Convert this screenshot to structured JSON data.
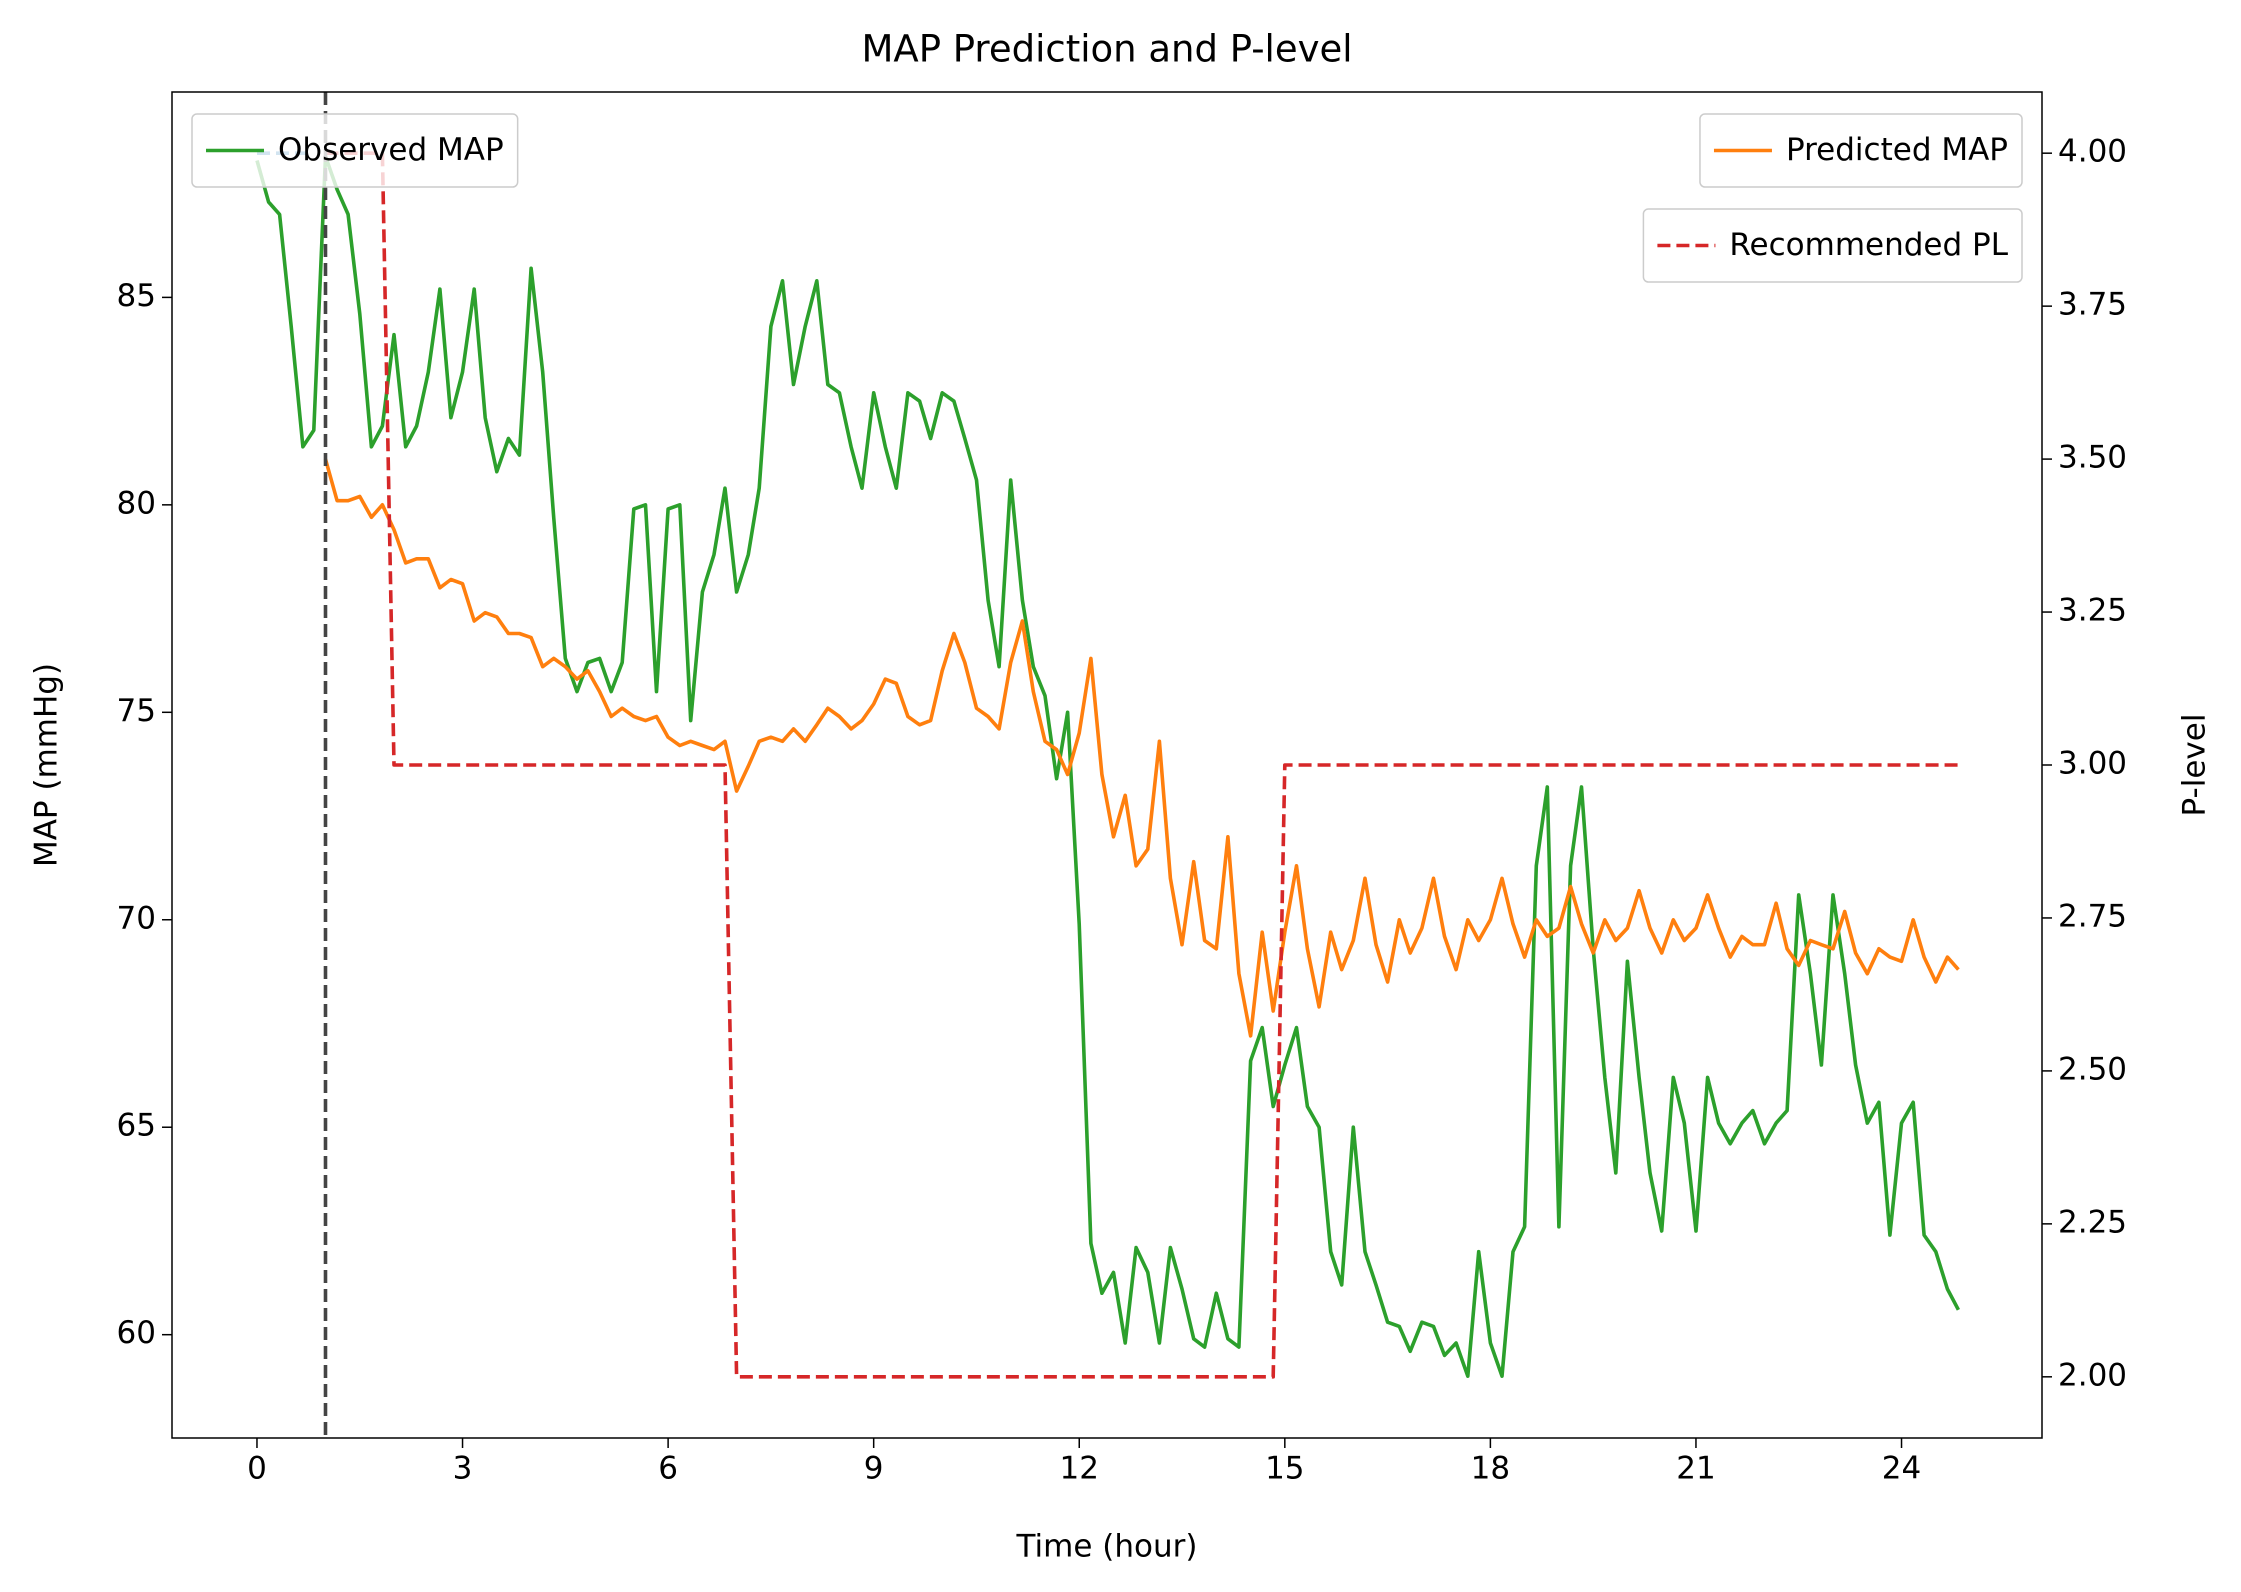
{
  "chart_data": {
    "type": "line",
    "title": "MAP Prediction and P-level",
    "xlabel": "Time (hour)",
    "ylabel": "MAP (mmHg)",
    "y2label": "P-level",
    "xlim": [
      -1.24,
      26.05
    ],
    "ylim": [
      57.51,
      89.95
    ],
    "y2lim": [
      1.9,
      4.1
    ],
    "xticks": [
      0,
      3,
      6,
      9,
      12,
      15,
      18,
      21,
      24
    ],
    "yticks": [
      60,
      65,
      70,
      75,
      80,
      85
    ],
    "y2ticks": [
      {
        "value": 2,
        "label": "2.00"
      },
      2.25,
      {
        "value": 2.5,
        "label": "2.50"
      },
      2.75,
      {
        "value": 3,
        "label": "3.00"
      },
      3.25,
      {
        "value": 3.5,
        "label": "3.50"
      },
      3.75,
      {
        "value": 4,
        "label": "4.00"
      }
    ],
    "vline": 1,
    "vline_color": "#444444",
    "series": [
      {
        "name": "Observed MAP",
        "color": "#2ca02c",
        "linestyle": "solid",
        "legend": "upper left",
        "x": [
          0,
          0.17,
          0.33,
          0.5,
          0.67,
          0.83,
          1,
          1.17,
          1.33,
          1.5,
          1.67,
          1.83,
          2,
          2.17,
          2.33,
          2.5,
          2.67,
          2.83,
          3,
          3.17,
          3.33,
          3.5,
          3.67,
          3.83,
          4,
          4.17,
          4.33,
          4.5,
          4.67,
          4.83,
          5,
          5.17,
          5.33,
          5.5,
          5.67,
          5.83,
          6,
          6.17,
          6.33,
          6.5,
          6.67,
          6.83,
          7,
          7.17,
          7.33,
          7.5,
          7.67,
          7.83,
          8,
          8.17,
          8.33,
          8.5,
          8.67,
          8.83,
          9,
          9.17,
          9.33,
          9.5,
          9.67,
          9.83,
          10,
          10.17,
          10.33,
          10.5,
          10.67,
          10.83,
          11,
          11.17,
          11.33,
          11.5,
          11.67,
          11.83,
          12,
          12.17,
          12.33,
          12.5,
          12.67,
          12.83,
          13,
          13.17,
          13.33,
          13.5,
          13.67,
          13.83,
          14,
          14.17,
          14.33,
          14.5,
          14.67,
          14.83,
          15,
          15.17,
          15.33,
          15.5,
          15.67,
          15.83,
          16,
          16.17,
          16.33,
          16.5,
          16.67,
          16.83,
          17,
          17.17,
          17.33,
          17.5,
          17.67,
          17.83,
          18,
          18.17,
          18.33,
          18.5,
          18.67,
          18.83,
          19,
          19.17,
          19.33,
          19.5,
          19.67,
          19.83,
          20,
          20.17,
          20.33,
          20.5,
          20.67,
          20.83,
          21,
          21.17,
          21.33,
          21.5,
          21.67,
          21.83,
          22,
          22.17,
          22.33,
          22.5,
          22.67,
          22.83,
          23,
          23.17,
          23.33,
          23.5,
          23.67,
          23.83,
          24,
          24.17,
          24.33,
          24.5,
          24.67,
          24.83
        ],
        "values": [
          88.3,
          87.3,
          87.0,
          84.3,
          81.4,
          81.8,
          88.4,
          87.6,
          87.0,
          84.6,
          81.4,
          81.9,
          84.1,
          81.4,
          81.9,
          83.2,
          85.2,
          82.1,
          83.2,
          85.2,
          82.1,
          80.8,
          81.6,
          81.2,
          85.7,
          83.2,
          79.7,
          76.3,
          75.5,
          76.2,
          76.3,
          75.5,
          76.2,
          79.9,
          80.0,
          75.5,
          79.9,
          80.0,
          74.8,
          77.9,
          78.8,
          80.4,
          77.9,
          78.8,
          80.4,
          84.3,
          85.4,
          82.9,
          84.3,
          85.4,
          82.9,
          82.7,
          81.4,
          80.4,
          82.7,
          81.4,
          80.4,
          82.7,
          82.5,
          81.6,
          82.7,
          82.5,
          81.6,
          80.6,
          77.7,
          76.1,
          80.6,
          77.7,
          76.1,
          75.4,
          73.4,
          75.0,
          69.9,
          62.2,
          61.0,
          61.5,
          59.8,
          62.1,
          61.5,
          59.8,
          62.1,
          61.1,
          59.9,
          59.7,
          61.0,
          59.9,
          59.7,
          66.6,
          67.4,
          65.5,
          66.5,
          67.4,
          65.5,
          65.0,
          62.0,
          61.2,
          65.0,
          62.0,
          61.2,
          60.3,
          60.2,
          59.6,
          60.3,
          60.2,
          59.5,
          59.8,
          59.0,
          62.0,
          59.8,
          59.0,
          62.0,
          62.6,
          71.3,
          73.2,
          62.6,
          71.3,
          73.2,
          69.3,
          66.2,
          63.9,
          69.0,
          66.2,
          63.9,
          62.5,
          66.2,
          65.1,
          62.5,
          66.2,
          65.1,
          64.6,
          65.1,
          65.4,
          64.6,
          65.1,
          65.4,
          70.6,
          68.7,
          66.5,
          70.6,
          68.7,
          66.5,
          65.1,
          65.6,
          62.4,
          65.1,
          65.6,
          62.4,
          62.0,
          61.1,
          60.6
        ]
      },
      {
        "name": "Predicted MAP",
        "color": "#ff7f0e",
        "linestyle": "solid",
        "legend": "upper right",
        "x": [
          1,
          1.17,
          1.33,
          1.5,
          1.67,
          1.83,
          2,
          2.17,
          2.33,
          2.5,
          2.67,
          2.83,
          3,
          3.17,
          3.33,
          3.5,
          3.67,
          3.83,
          4,
          4.17,
          4.33,
          4.5,
          4.67,
          4.83,
          5,
          5.17,
          5.33,
          5.5,
          5.67,
          5.83,
          6,
          6.17,
          6.33,
          6.5,
          6.67,
          6.83,
          7,
          7.17,
          7.33,
          7.5,
          7.67,
          7.83,
          8,
          8.17,
          8.33,
          8.5,
          8.67,
          8.83,
          9,
          9.17,
          9.33,
          9.5,
          9.67,
          9.83,
          10,
          10.17,
          10.33,
          10.5,
          10.67,
          10.83,
          11,
          11.17,
          11.33,
          11.5,
          11.67,
          11.83,
          12,
          12.17,
          12.33,
          12.5,
          12.67,
          12.83,
          13,
          13.17,
          13.33,
          13.5,
          13.67,
          13.83,
          14,
          14.17,
          14.33,
          14.5,
          14.67,
          14.83,
          15,
          15.17,
          15.33,
          15.5,
          15.67,
          15.83,
          16,
          16.17,
          16.33,
          16.5,
          16.67,
          16.83,
          17,
          17.17,
          17.33,
          17.5,
          17.67,
          17.83,
          18,
          18.17,
          18.33,
          18.5,
          18.67,
          18.83,
          19,
          19.17,
          19.33,
          19.5,
          19.67,
          19.83,
          20,
          20.17,
          20.33,
          20.5,
          20.67,
          20.83,
          21,
          21.17,
          21.33,
          21.5,
          21.67,
          21.83,
          22,
          22.17,
          22.33,
          22.5,
          22.67,
          22.83,
          23,
          23.17,
          23.33,
          23.5,
          23.67,
          23.83,
          24,
          24.17,
          24.33,
          24.5,
          24.67,
          24.83
        ],
        "values": [
          81.1,
          80.1,
          80.1,
          80.2,
          79.7,
          80.0,
          79.4,
          78.6,
          78.7,
          78.7,
          78.0,
          78.2,
          78.1,
          77.2,
          77.4,
          77.3,
          76.9,
          76.9,
          76.8,
          76.1,
          76.3,
          76.1,
          75.8,
          76.0,
          75.5,
          74.9,
          75.1,
          74.9,
          74.8,
          74.9,
          74.4,
          74.2,
          74.3,
          74.2,
          74.1,
          74.3,
          73.1,
          73.7,
          74.3,
          74.4,
          74.3,
          74.6,
          74.3,
          74.7,
          75.1,
          74.9,
          74.6,
          74.8,
          75.2,
          75.8,
          75.7,
          74.9,
          74.7,
          74.8,
          76.0,
          76.9,
          76.2,
          75.1,
          74.9,
          74.6,
          76.2,
          77.2,
          75.5,
          74.3,
          74.1,
          73.5,
          74.5,
          76.3,
          73.5,
          72.0,
          73.0,
          71.3,
          71.7,
          74.3,
          71.0,
          69.4,
          71.4,
          69.5,
          69.3,
          72.0,
          68.7,
          67.2,
          69.7,
          67.8,
          69.7,
          71.3,
          69.3,
          67.9,
          69.7,
          68.8,
          69.5,
          71.0,
          69.4,
          68.5,
          70.0,
          69.2,
          69.8,
          71.0,
          69.6,
          68.8,
          70.0,
          69.5,
          70.0,
          71.0,
          69.9,
          69.1,
          70.0,
          69.6,
          69.8,
          70.8,
          69.9,
          69.2,
          70.0,
          69.5,
          69.8,
          70.7,
          69.8,
          69.2,
          70.0,
          69.5,
          69.8,
          70.6,
          69.8,
          69.1,
          69.6,
          69.4,
          69.4,
          70.4,
          69.3,
          68.9,
          69.5,
          69.4,
          69.3,
          70.2,
          69.2,
          68.7,
          69.3,
          69.1,
          69.0,
          70.0,
          69.1,
          68.5,
          69.1,
          68.8
        ]
      },
      {
        "name": "Recommended PL",
        "color": "#d62728",
        "linestyle": "dashed",
        "axis": "y2",
        "legend": "upper right",
        "x": [
          1,
          1.83,
          2,
          6.83,
          7,
          14.83,
          15,
          24.83
        ],
        "values": [
          4,
          4,
          3,
          3,
          2,
          2,
          3,
          3
        ]
      },
      {
        "color": "#1f77b4",
        "linestyle": "dashed",
        "axis": "y2",
        "x": [
          0,
          0.83
        ],
        "values": [
          4,
          4
        ]
      }
    ]
  }
}
